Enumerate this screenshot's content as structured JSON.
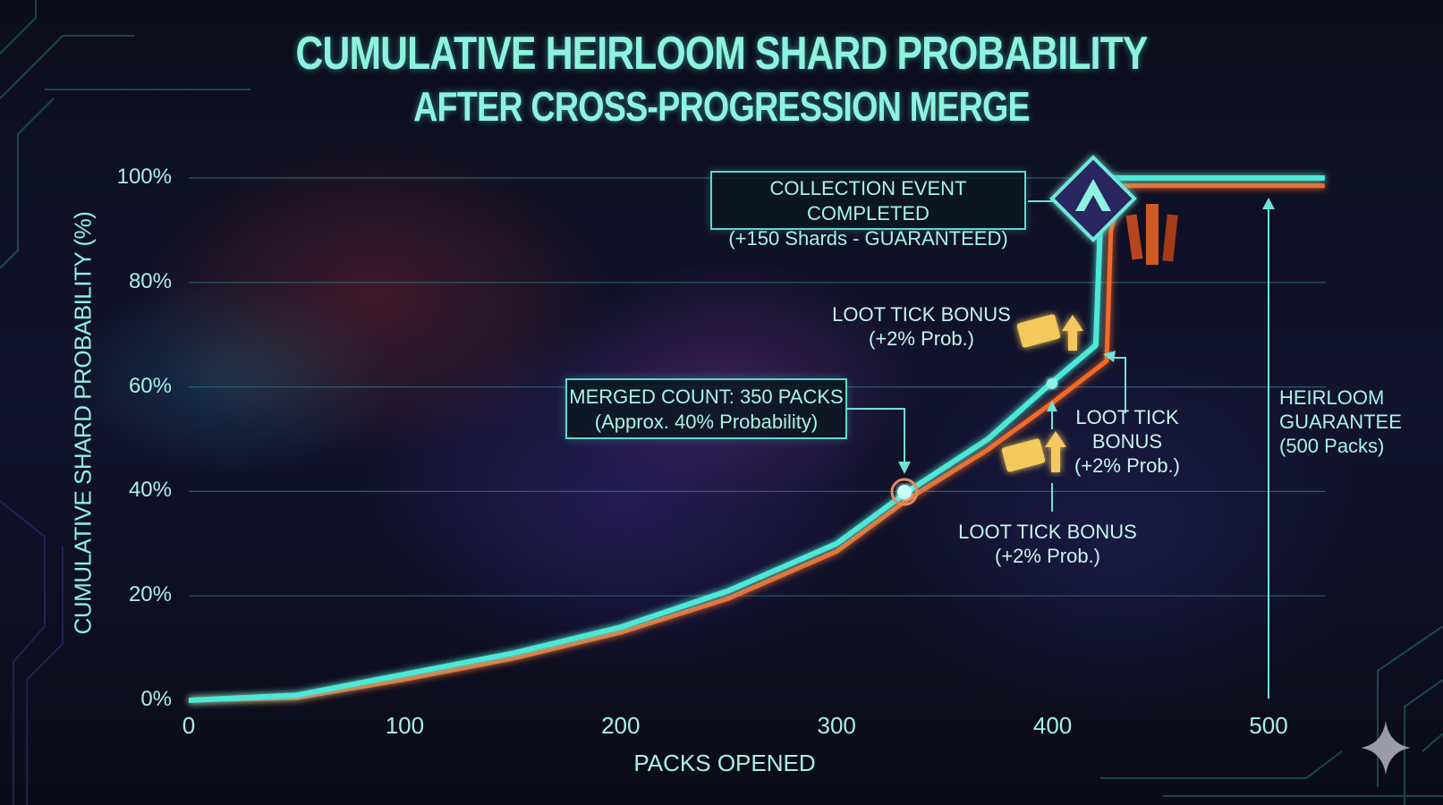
{
  "title": "CUMULATIVE HEIRLOOM SHARD PROBABILITY",
  "subtitle": "AFTER CROSS-PROGRESSION MERGE",
  "colors": {
    "primary_line": "#4de8d8",
    "secondary_line": "#f26a2a",
    "axis": "#4de8d8",
    "text": "#9ff0e2",
    "ticket": "#f2c95a"
  },
  "chart_data": {
    "type": "line",
    "title": "CUMULATIVE HEIRLOOM SHARD PROBABILITY",
    "subtitle": "AFTER CROSS-PROGRESSION MERGE",
    "xlabel": "PACKS OPENED",
    "ylabel": "CUMULATIVE SHARD PROBABILITY (%)",
    "xlim": [
      0,
      530
    ],
    "ylim": [
      0,
      100
    ],
    "x_ticks": [
      "0",
      "100",
      "200",
      "300",
      "400",
      "500"
    ],
    "y_ticks": [
      "0%",
      "20%",
      "40%",
      "60%",
      "80%",
      "100%"
    ],
    "grid": true,
    "series": [
      {
        "color": "#4de8d8",
        "points": [
          [
            0,
            0
          ],
          [
            50,
            1
          ],
          [
            100,
            5
          ],
          [
            150,
            9
          ],
          [
            200,
            14
          ],
          [
            250,
            21
          ],
          [
            300,
            30
          ],
          [
            333,
            40
          ],
          [
            370,
            50
          ],
          [
            400,
            61
          ],
          [
            420,
            68
          ],
          [
            422,
            90
          ],
          [
            428,
            100
          ],
          [
            526,
            100
          ]
        ]
      },
      {
        "color": "#f26a2a",
        "points": [
          [
            0,
            0
          ],
          [
            50,
            0.5
          ],
          [
            100,
            4
          ],
          [
            150,
            8
          ],
          [
            200,
            13
          ],
          [
            250,
            19.5
          ],
          [
            300,
            28.5
          ],
          [
            333,
            38.5
          ],
          [
            370,
            48
          ],
          [
            400,
            57
          ],
          [
            425,
            65
          ],
          [
            427,
            90
          ],
          [
            433,
            98.5
          ],
          [
            526,
            98.5
          ]
        ]
      }
    ],
    "annotations": [
      {
        "text": "COLLECTION EVENT COMPLETED",
        "subtext": "(+150 Shards - GUARANTEED)"
      },
      {
        "text": "MERGED COUNT: 350 PACKS",
        "subtext": "(Approx. 40% Probability)",
        "x": 333,
        "y": 40
      },
      {
        "text": "LOOT TICK BONUS",
        "subtext": "(+2% Prob.)"
      },
      {
        "text": "LOOT TICK BONUS",
        "subtext": "(+2% Prob.)"
      },
      {
        "text": "LOOT TICK BONUS",
        "subtext": "(+2% Prob.)",
        "x": 400,
        "y": 61
      },
      {
        "text": "HEIRLOOM GUARANTEE",
        "subtext": "(500 Packs)",
        "x": 500
      }
    ]
  },
  "labels": {
    "collection_1": "COLLECTION EVENT COMPLETED",
    "collection_2": "(+150 Shards - GUARANTEED)",
    "merged_1": "MERGED COUNT: 350 PACKS",
    "merged_2": "(Approx. 40% Probability)",
    "loot_a_1": "LOOT TICK BONUS",
    "loot_a_2": "(+2% Prob.)",
    "loot_b_1": "LOOT TICK",
    "loot_b_2": "BONUS",
    "loot_b_3": "(+2% Prob.)",
    "loot_c_1": "LOOT TICK BONUS",
    "loot_c_2": "(+2% Prob.)",
    "heirloom_1": "HEIRLOOM",
    "heirloom_2": "GUARANTEE",
    "heirloom_3": "(500 Packs)"
  }
}
